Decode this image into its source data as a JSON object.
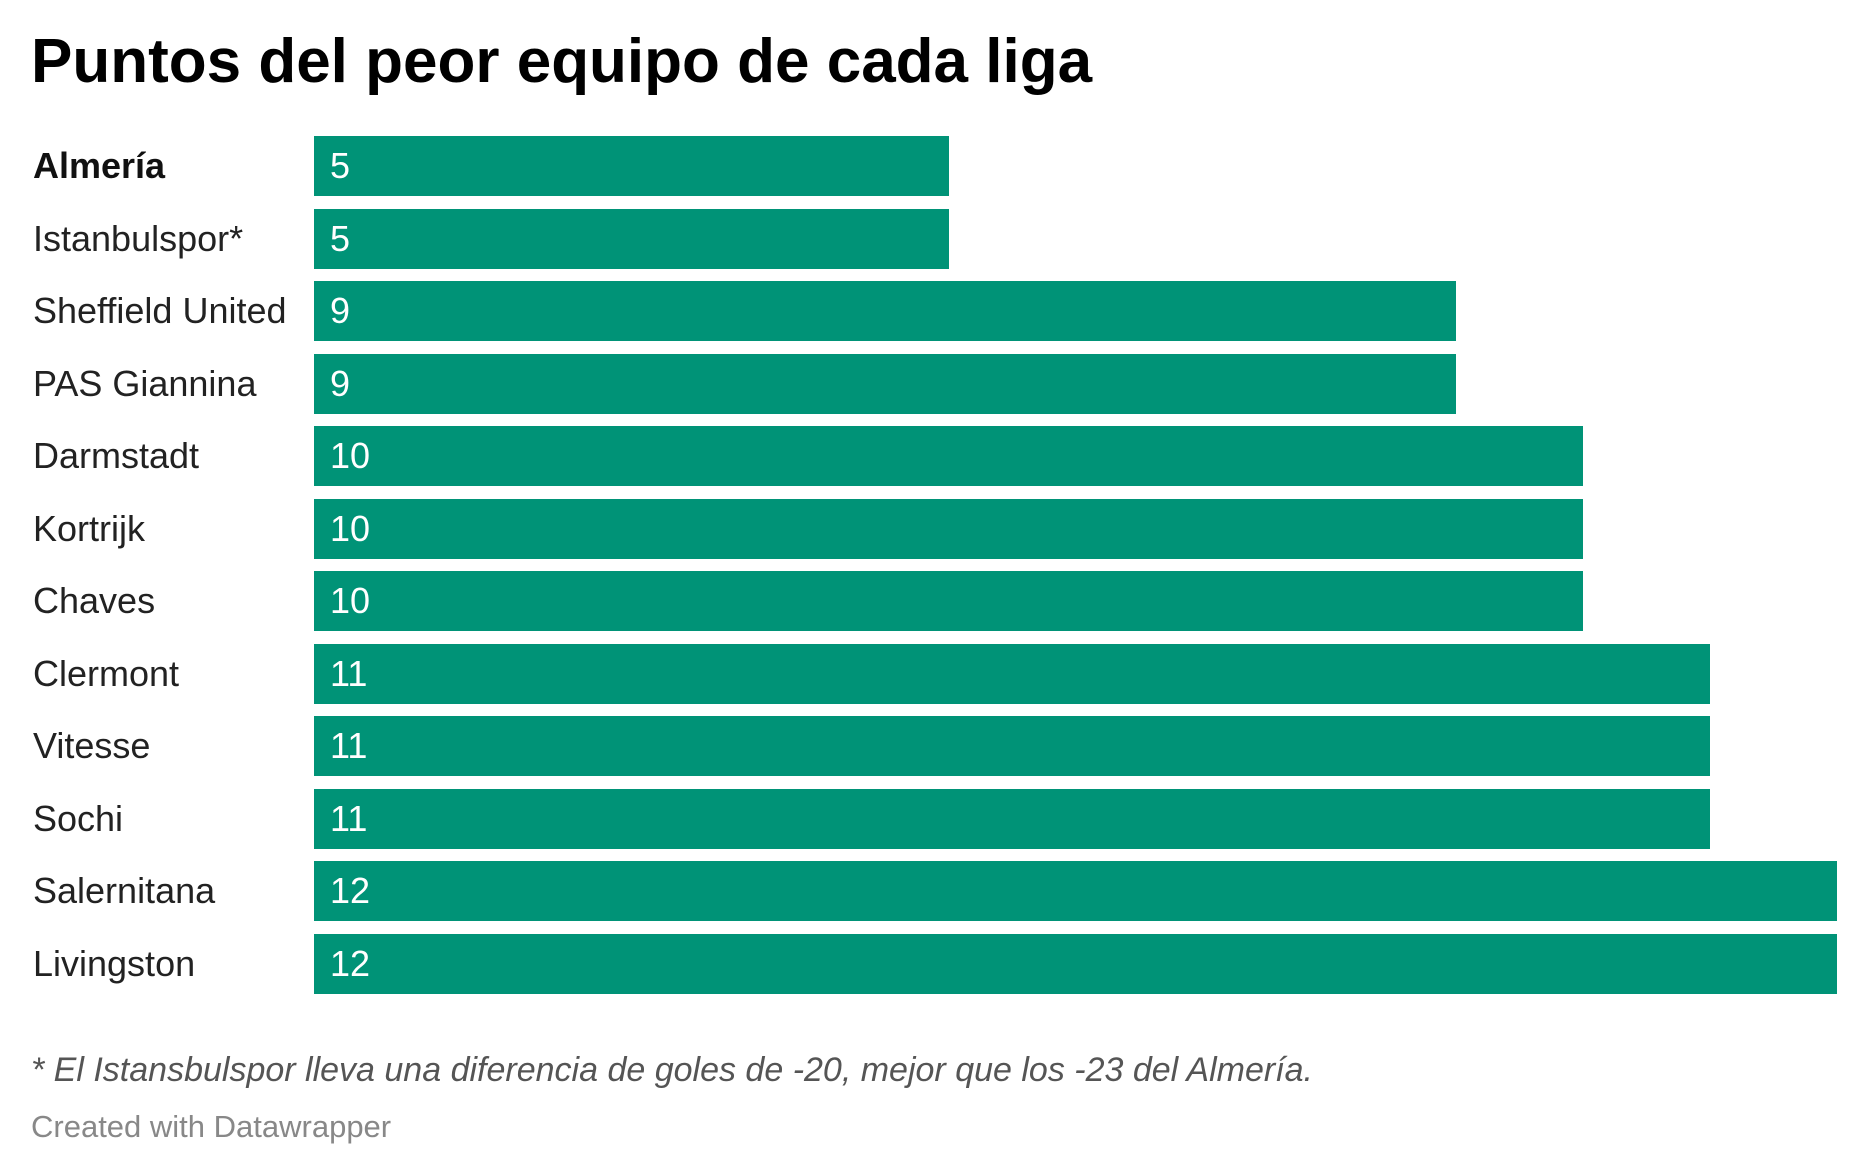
{
  "chart_data": {
    "type": "bar",
    "orientation": "horizontal",
    "title": "Puntos del peor equipo de cada liga",
    "categories": [
      "Almería",
      "Istanbulspor*",
      "Sheffield United",
      "PAS Giannina",
      "Darmstadt",
      "Kortrijk",
      "Chaves",
      "Clermont",
      "Vitesse",
      "Sochi",
      "Salernitana",
      "Livingston"
    ],
    "values": [
      5,
      5,
      9,
      9,
      10,
      10,
      10,
      11,
      11,
      11,
      12,
      12
    ],
    "highlighted_category": "Almería",
    "bar_color": "#009377",
    "value_label_color": "#ffffff",
    "data_labels": "inside-start",
    "xlim": [
      0,
      12
    ],
    "grid": false,
    "legend": "none"
  },
  "note": "* El Istansbulspor lleva una diferencia de goles de -20, mejor que los -23 del Almería.",
  "credit": "Created with Datawrapper"
}
